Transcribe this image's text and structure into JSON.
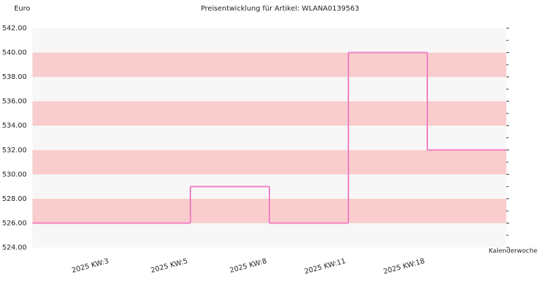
{
  "chart_data": {
    "type": "step",
    "title": "Preisentwicklung für Artikel: WLANA0139563",
    "y_label": "Euro",
    "x_label": "Kalenderwoche",
    "categories": [
      "2025 KW:3",
      "2025 KW:5",
      "2025 KW:8",
      "2025 KW:11",
      "2025 KW:18"
    ],
    "values": [
      526,
      529,
      526,
      540,
      532
    ],
    "color": "#f47fc4",
    "band_colors": [
      "#f7f7f7",
      "#f9cdcd"
    ],
    "ylim": [
      524,
      542
    ],
    "yticks": [
      {
        "value": 524,
        "label": "524.00"
      },
      {
        "value": 526,
        "label": "526.00"
      },
      {
        "value": 528,
        "label": "528.00"
      },
      {
        "value": 530,
        "label": "530.00"
      },
      {
        "value": 532,
        "label": "532.00"
      },
      {
        "value": 534,
        "label": "534.00"
      },
      {
        "value": 536,
        "label": "536.00"
      },
      {
        "value": 538,
        "label": "538.00"
      },
      {
        "value": 540,
        "label": "540.00"
      },
      {
        "value": 542,
        "label": "542.00"
      }
    ]
  }
}
